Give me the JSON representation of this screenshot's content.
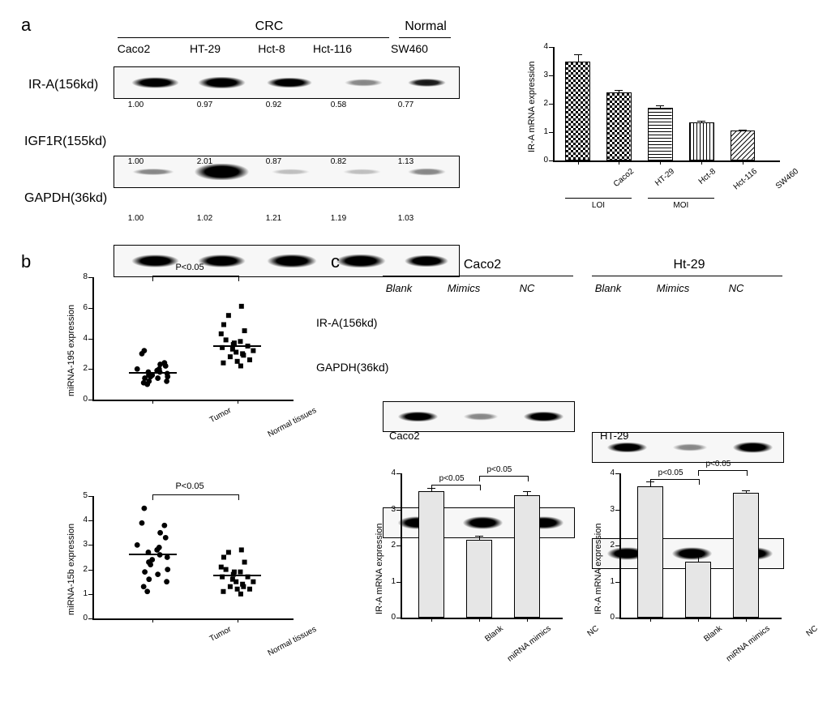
{
  "panel_a": {
    "letter": "a",
    "top_labels": {
      "crc": "CRC",
      "normal": "Normal"
    },
    "columns": [
      "Caco2",
      "HT-29",
      "Hct-8",
      "Hct-116",
      "SW460"
    ],
    "blots": {
      "ira": {
        "label": "IR-A(156kd)",
        "quant": [
          "1.00",
          "0.97",
          "0.92",
          "0.58",
          "0.77"
        ]
      },
      "igf1r": {
        "label": "IGF1R(155kd)",
        "quant": [
          "1.00",
          "2.01",
          "0.87",
          "0.82",
          "1.13"
        ]
      },
      "gapdh": {
        "label": "GAPDH(36kd)",
        "quant": [
          "1.00",
          "1.02",
          "1.21",
          "1.19",
          "1.03"
        ]
      }
    },
    "bar_chart": {
      "type": "bar",
      "y_label": "IR-A mRNA expression",
      "y_ticks": [
        0,
        1,
        2,
        3,
        4
      ],
      "categories": [
        "Caco2",
        "HT-29",
        "Hct-8",
        "Hct-116",
        "SW460"
      ],
      "values": [
        3.5,
        2.4,
        1.85,
        1.35,
        1.05
      ],
      "errors": [
        0.25,
        0.1,
        0.1,
        0.05,
        0.05
      ],
      "group_labels": {
        "LOI": "LOI",
        "MOI": "MOI"
      },
      "bar_width": 0.6,
      "bar_patterns": [
        "checker",
        "checker",
        "hstripe",
        "vstripe",
        "diag"
      ],
      "bar_border": "#000",
      "axis_color": "#000",
      "tick_fontsize": 10,
      "label_fontsize": 11
    }
  },
  "panel_b": {
    "letter": "b",
    "scatter_top": {
      "type": "scatter",
      "y_label": "miRNA-195 expression",
      "y_ticks": [
        0,
        2,
        4,
        6,
        8
      ],
      "x_labels": [
        "Tumor",
        "Normal tissues"
      ],
      "pval": "P<0.05",
      "means": [
        1.75,
        3.5
      ],
      "markers": [
        "circle",
        "square"
      ],
      "points": {
        "Tumor": [
          1.0,
          1.1,
          1.2,
          1.2,
          1.4,
          1.4,
          1.5,
          1.5,
          1.6,
          1.6,
          1.7,
          1.8,
          1.8,
          1.9,
          2.0,
          2.0,
          2.2,
          2.3,
          2.4,
          3.0,
          3.2
        ],
        "Normal": [
          2.2,
          2.4,
          2.5,
          2.6,
          2.8,
          2.9,
          3.0,
          3.1,
          3.2,
          3.3,
          3.4,
          3.5,
          3.6,
          3.7,
          3.8,
          3.9,
          4.3,
          4.5,
          4.9,
          5.5,
          6.1
        ]
      }
    },
    "scatter_bot": {
      "type": "scatter",
      "y_label": "miRNA-15b expression",
      "y_ticks": [
        0,
        1,
        2,
        3,
        4,
        5
      ],
      "x_labels": [
        "Tumor",
        "Normal tissues"
      ],
      "pval": "P<0.05",
      "means": [
        2.6,
        1.75
      ],
      "markers": [
        "circle",
        "square"
      ],
      "points": {
        "Tumor": [
          1.1,
          1.3,
          1.5,
          1.6,
          1.8,
          1.9,
          2.0,
          2.2,
          2.3,
          2.4,
          2.5,
          2.6,
          2.7,
          2.8,
          2.9,
          3.0,
          3.3,
          3.5,
          3.8,
          3.9,
          4.5
        ],
        "Normal": [
          1.0,
          1.1,
          1.2,
          1.2,
          1.3,
          1.3,
          1.4,
          1.5,
          1.5,
          1.6,
          1.7,
          1.7,
          1.8,
          1.9,
          1.9,
          2.0,
          2.1,
          2.3,
          2.5,
          2.7,
          2.8
        ]
      }
    }
  },
  "panel_c": {
    "letter": "c",
    "cells": [
      "Caco2",
      "Ht-29"
    ],
    "conditions": [
      "Blank",
      "Mimics",
      "NC"
    ],
    "blot_labels": {
      "ira": "IR-A(156kd)",
      "gapdh": "GAPDH(36kd)"
    },
    "bars": {
      "y_label": "IR-A mRNA expression",
      "y_ticks": [
        0,
        1,
        2,
        3,
        4
      ],
      "pval": "p<0.05",
      "x_categories": [
        "Blank",
        "miRNA mimics",
        "NC"
      ],
      "Caco2": {
        "title": "Caco2",
        "values": [
          3.5,
          2.15,
          3.4
        ],
        "errors": [
          0.1,
          0.12,
          0.1
        ]
      },
      "HT29": {
        "title": "HT-29",
        "values": [
          3.65,
          1.55,
          3.45
        ],
        "errors": [
          0.12,
          0.15,
          0.08
        ]
      },
      "bar_fill": "#e6e6e6"
    }
  }
}
